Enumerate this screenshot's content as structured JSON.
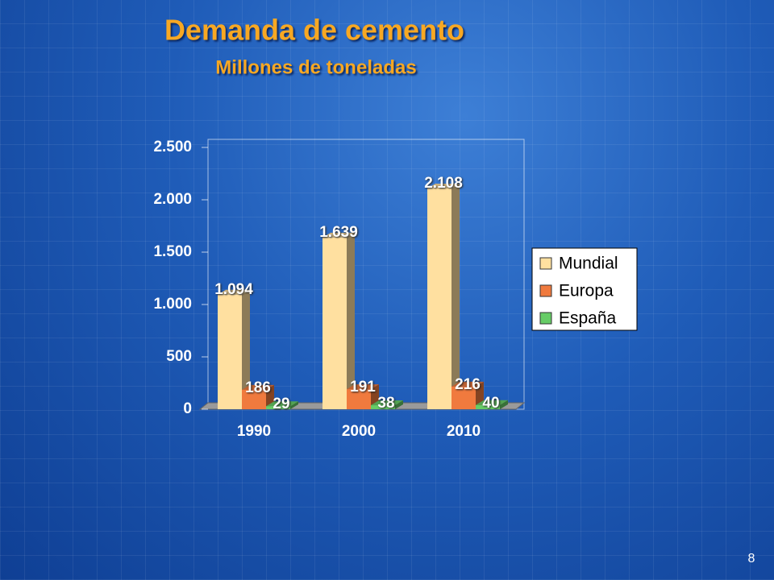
{
  "chart_data": {
    "type": "bar3d",
    "title": "Demanda de cemento",
    "subtitle": "Millones de toneladas",
    "categories": [
      "1990",
      "2000",
      "2010"
    ],
    "series": [
      {
        "name": "Mundial",
        "color": "#ffe0a0",
        "values": [
          1094,
          1639,
          2108
        ],
        "value_labels": [
          "1.094",
          "1.639",
          "2.108"
        ]
      },
      {
        "name": "Europa",
        "color": "#f07a3e",
        "values": [
          186,
          191,
          216
        ]
      },
      {
        "name": "España",
        "color": "#66cc66",
        "values": [
          29,
          38,
          40
        ]
      }
    ],
    "ylim": [
      0,
      2500
    ],
    "yticks": [
      0,
      500,
      {
        "value": 1000,
        "label": "1.000"
      },
      {
        "value": 1500,
        "label": "1.500"
      },
      {
        "value": 2000,
        "label": "2.000"
      },
      {
        "value": 2500,
        "label": "2.500"
      }
    ],
    "legend": "right"
  },
  "page_number": "8"
}
